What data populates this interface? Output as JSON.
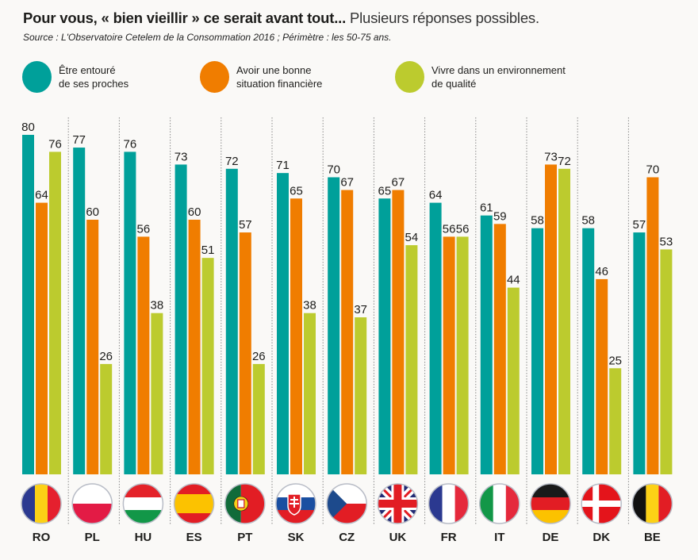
{
  "header": {
    "title_bold": "Pour vous, « bien vieillir » ce serait avant tout...",
    "title_regular": " Plusieurs réponses possibles.",
    "source": "Source : L'Observatoire Cetelem de la Consommation 2016 ; Périmètre : les 50-75 ans."
  },
  "legend": [
    {
      "label_line1": "Être entouré",
      "label_line2": "de ses proches",
      "color": "#00a09a"
    },
    {
      "label_line1": "Avoir une bonne",
      "label_line2": "situation financière",
      "color": "#f07d00"
    },
    {
      "label_line1": "Vivre dans un environnement",
      "label_line2": "de qualité",
      "color": "#bccb2e"
    }
  ],
  "chart_data": {
    "type": "bar",
    "title": "Pour vous, « bien vieillir » ce serait avant tout... Plusieurs réponses possibles.",
    "subtitle": "Source : L'Observatoire Cetelem de la Consommation 2016 ; Périmètre : les 50-75 ans.",
    "xlabel": "",
    "ylabel": "",
    "ylim": [
      0,
      80
    ],
    "grid": false,
    "legend_position": "top",
    "categories": [
      "RO",
      "PL",
      "HU",
      "ES",
      "PT",
      "SK",
      "CZ",
      "UK",
      "FR",
      "IT",
      "DE",
      "DK",
      "BE"
    ],
    "flags": [
      "romania-flag",
      "poland-flag",
      "hungary-flag",
      "spain-flag",
      "portugal-flag",
      "slovakia-flag",
      "czech-flag",
      "uk-flag",
      "france-flag",
      "italy-flag",
      "germany-flag",
      "denmark-flag",
      "belgium-flag"
    ],
    "series": [
      {
        "name": "Être entouré de ses proches",
        "color": "#00a09a",
        "values": [
          80,
          77,
          76,
          73,
          72,
          71,
          70,
          65,
          64,
          61,
          58,
          58,
          57
        ]
      },
      {
        "name": "Avoir une bonne situation financière",
        "color": "#f07d00",
        "values": [
          64,
          60,
          56,
          60,
          57,
          65,
          67,
          67,
          56,
          59,
          73,
          46,
          70
        ]
      },
      {
        "name": "Vivre dans un environnement de qualité",
        "color": "#bccb2e",
        "values": [
          76,
          26,
          38,
          51,
          26,
          38,
          37,
          54,
          56,
          44,
          72,
          25,
          53
        ]
      }
    ]
  }
}
